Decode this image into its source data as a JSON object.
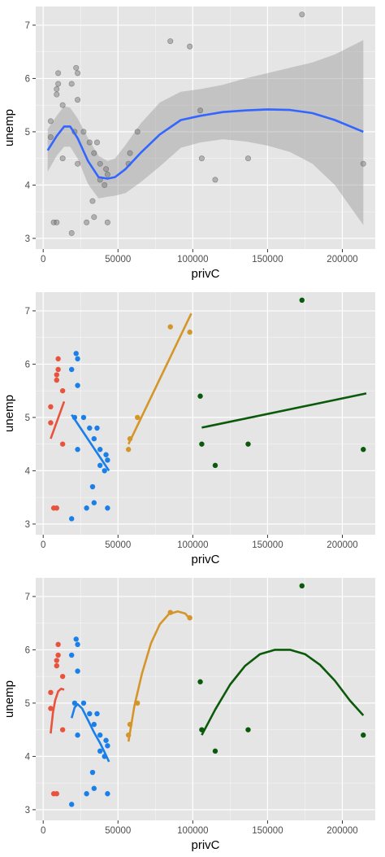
{
  "colors": {
    "panel_bg": "#e5e5e5",
    "grid_major": "#ffffff",
    "tick_text": "#4d4d4d",
    "ribbon": "#999999",
    "loess_line": "#3366ff",
    "group1": "#e8533d",
    "group2": "#1a7fe8",
    "group3": "#d4962a",
    "group4": "#0b5a0b"
  },
  "chart_data": [
    {
      "type": "scatter",
      "title": "",
      "xlabel": "privC",
      "ylabel": "unemp",
      "xlim": [
        -5000,
        222000
      ],
      "ylim": [
        2.8,
        7.35
      ],
      "x_ticks": [
        0,
        50000,
        100000,
        150000,
        200000
      ],
      "x_tick_labels": [
        "0",
        "50000",
        "100000",
        "150000",
        "200000"
      ],
      "y_ticks": [
        3,
        4,
        5,
        6,
        7
      ],
      "y_tick_labels": [
        "3",
        "4",
        "5",
        "6",
        "7"
      ],
      "grid": true,
      "legend": "none",
      "point_style": "grey-translucent",
      "points": [
        [
          5000,
          4.9
        ],
        [
          5000,
          5.2
        ],
        [
          7000,
          3.3
        ],
        [
          9000,
          3.3
        ],
        [
          9000,
          5.7
        ],
        [
          9000,
          5.8
        ],
        [
          10000,
          5.9
        ],
        [
          10000,
          6.1
        ],
        [
          13000,
          5.5
        ],
        [
          13000,
          4.5
        ],
        [
          19000,
          3.1
        ],
        [
          19000,
          5.9
        ],
        [
          21000,
          5.0
        ],
        [
          22000,
          6.2
        ],
        [
          23000,
          4.4
        ],
        [
          23000,
          6.1
        ],
        [
          23000,
          5.6
        ],
        [
          27000,
          5.0
        ],
        [
          29000,
          3.3
        ],
        [
          31000,
          4.8
        ],
        [
          33000,
          3.7
        ],
        [
          34000,
          4.6
        ],
        [
          34000,
          3.4
        ],
        [
          36000,
          4.8
        ],
        [
          38000,
          4.4
        ],
        [
          38000,
          4.1
        ],
        [
          41000,
          4.0
        ],
        [
          42000,
          4.3
        ],
        [
          43000,
          3.3
        ],
        [
          43000,
          4.2
        ],
        [
          57000,
          4.4
        ],
        [
          58000,
          4.6
        ],
        [
          63000,
          5.0
        ],
        [
          85000,
          6.7
        ],
        [
          98000,
          6.6
        ],
        [
          105000,
          5.4
        ],
        [
          106000,
          4.5
        ],
        [
          115000,
          4.1
        ],
        [
          137000,
          4.5
        ],
        [
          173000,
          7.2
        ],
        [
          214000,
          4.4
        ]
      ],
      "smooth": {
        "method": "loess",
        "line": [
          [
            3000,
            4.65
          ],
          [
            9000,
            4.92
          ],
          [
            14000,
            5.1
          ],
          [
            18000,
            5.1
          ],
          [
            23000,
            4.88
          ],
          [
            30000,
            4.45
          ],
          [
            37000,
            4.15
          ],
          [
            43000,
            4.12
          ],
          [
            48000,
            4.15
          ],
          [
            55000,
            4.3
          ],
          [
            65000,
            4.6
          ],
          [
            78000,
            4.95
          ],
          [
            92000,
            5.22
          ],
          [
            105000,
            5.3
          ],
          [
            120000,
            5.37
          ],
          [
            135000,
            5.4
          ],
          [
            150000,
            5.42
          ],
          [
            165000,
            5.41
          ],
          [
            180000,
            5.35
          ],
          [
            195000,
            5.22
          ],
          [
            214000,
            5.0
          ]
        ],
        "ribbon_upper": [
          [
            3000,
            5.05
          ],
          [
            9000,
            5.3
          ],
          [
            14000,
            5.48
          ],
          [
            18000,
            5.45
          ],
          [
            23000,
            5.25
          ],
          [
            30000,
            4.88
          ],
          [
            37000,
            4.55
          ],
          [
            43000,
            4.45
          ],
          [
            48000,
            4.5
          ],
          [
            55000,
            4.75
          ],
          [
            65000,
            5.15
          ],
          [
            78000,
            5.55
          ],
          [
            92000,
            5.75
          ],
          [
            105000,
            5.8
          ],
          [
            120000,
            5.88
          ],
          [
            135000,
            6.0
          ],
          [
            150000,
            6.1
          ],
          [
            165000,
            6.2
          ],
          [
            180000,
            6.3
          ],
          [
            195000,
            6.45
          ],
          [
            214000,
            6.72
          ]
        ],
        "ribbon_lower": [
          [
            3000,
            4.25
          ],
          [
            9000,
            4.55
          ],
          [
            14000,
            4.72
          ],
          [
            18000,
            4.72
          ],
          [
            23000,
            4.5
          ],
          [
            30000,
            4.02
          ],
          [
            37000,
            3.75
          ],
          [
            43000,
            3.78
          ],
          [
            48000,
            3.8
          ],
          [
            55000,
            3.85
          ],
          [
            65000,
            4.05
          ],
          [
            78000,
            4.35
          ],
          [
            92000,
            4.7
          ],
          [
            105000,
            4.8
          ],
          [
            120000,
            4.86
          ],
          [
            135000,
            4.82
          ],
          [
            150000,
            4.74
          ],
          [
            165000,
            4.62
          ],
          [
            180000,
            4.4
          ],
          [
            195000,
            4.0
          ],
          [
            214000,
            3.25
          ]
        ]
      }
    },
    {
      "type": "scatter",
      "title": "",
      "xlabel": "privC",
      "ylabel": "unemp",
      "xlim": [
        -5000,
        222000
      ],
      "ylim": [
        2.8,
        7.35
      ],
      "x_ticks": [
        0,
        50000,
        100000,
        150000,
        200000
      ],
      "x_tick_labels": [
        "0",
        "50000",
        "100000",
        "150000",
        "200000"
      ],
      "y_ticks": [
        3,
        4,
        5,
        6,
        7
      ],
      "y_tick_labels": [
        "3",
        "4",
        "5",
        "6",
        "7"
      ],
      "grid": true,
      "legend": "none",
      "fit": "linear",
      "series": [
        {
          "color": "#e8533d",
          "points": [
            [
              5000,
              4.9
            ],
            [
              5000,
              5.2
            ],
            [
              7000,
              3.3
            ],
            [
              9000,
              3.3
            ],
            [
              9000,
              5.7
            ],
            [
              9000,
              5.8
            ],
            [
              10000,
              5.9
            ],
            [
              10000,
              6.1
            ],
            [
              13000,
              5.5
            ],
            [
              13000,
              4.5
            ]
          ],
          "fit_line": [
            [
              5000,
              4.6
            ],
            [
              14000,
              5.3
            ]
          ]
        },
        {
          "color": "#1a7fe8",
          "points": [
            [
              19000,
              3.1
            ],
            [
              19000,
              5.9
            ],
            [
              21000,
              5.0
            ],
            [
              22000,
              6.2
            ],
            [
              23000,
              4.4
            ],
            [
              23000,
              6.1
            ],
            [
              23000,
              5.6
            ],
            [
              27000,
              5.0
            ],
            [
              29000,
              3.3
            ],
            [
              31000,
              4.8
            ],
            [
              33000,
              3.7
            ],
            [
              34000,
              4.6
            ],
            [
              34000,
              3.4
            ],
            [
              36000,
              4.8
            ],
            [
              38000,
              4.4
            ],
            [
              38000,
              4.1
            ],
            [
              41000,
              4.0
            ],
            [
              42000,
              4.3
            ],
            [
              43000,
              3.3
            ],
            [
              43000,
              4.2
            ]
          ],
          "fit_line": [
            [
              19000,
              5.05
            ],
            [
              44000,
              4.0
            ]
          ]
        },
        {
          "color": "#d4962a",
          "points": [
            [
              57000,
              4.4
            ],
            [
              58000,
              4.6
            ],
            [
              63000,
              5.0
            ],
            [
              85000,
              6.7
            ],
            [
              98000,
              6.6
            ]
          ],
          "fit_line": [
            [
              57000,
              4.5
            ],
            [
              99000,
              6.95
            ]
          ]
        },
        {
          "color": "#0b5a0b",
          "points": [
            [
              105000,
              5.4
            ],
            [
              106000,
              4.5
            ],
            [
              115000,
              4.1
            ],
            [
              137000,
              4.5
            ],
            [
              173000,
              7.2
            ],
            [
              214000,
              4.4
            ]
          ],
          "fit_line": [
            [
              106000,
              4.81
            ],
            [
              216000,
              5.45
            ]
          ]
        }
      ]
    },
    {
      "type": "scatter",
      "title": "",
      "xlabel": "privC",
      "ylabel": "unemp",
      "xlim": [
        -5000,
        222000
      ],
      "ylim": [
        2.8,
        7.35
      ],
      "x_ticks": [
        0,
        50000,
        100000,
        150000,
        200000
      ],
      "x_tick_labels": [
        "0",
        "50000",
        "100000",
        "150000",
        "200000"
      ],
      "y_ticks": [
        3,
        4,
        5,
        6,
        7
      ],
      "y_tick_labels": [
        "3",
        "4",
        "5",
        "6",
        "7"
      ],
      "grid": true,
      "legend": "none",
      "fit": "quadratic",
      "series": [
        {
          "color": "#e8533d",
          "points": [
            [
              5000,
              4.9
            ],
            [
              5000,
              5.2
            ],
            [
              7000,
              3.3
            ],
            [
              9000,
              3.3
            ],
            [
              9000,
              5.7
            ],
            [
              9000,
              5.8
            ],
            [
              10000,
              5.9
            ],
            [
              10000,
              6.1
            ],
            [
              13000,
              5.5
            ],
            [
              13000,
              4.5
            ]
          ],
          "fit_line": [
            [
              5000,
              4.43
            ],
            [
              6500,
              4.82
            ],
            [
              8000,
              5.05
            ],
            [
              10000,
              5.22
            ],
            [
              12000,
              5.27
            ],
            [
              14000,
              5.25
            ]
          ]
        },
        {
          "color": "#1a7fe8",
          "points": [
            [
              19000,
              3.1
            ],
            [
              19000,
              5.9
            ],
            [
              21000,
              5.0
            ],
            [
              22000,
              6.2
            ],
            [
              23000,
              4.4
            ],
            [
              23000,
              6.1
            ],
            [
              23000,
              5.6
            ],
            [
              27000,
              5.0
            ],
            [
              29000,
              3.3
            ],
            [
              31000,
              4.8
            ],
            [
              33000,
              3.7
            ],
            [
              34000,
              4.6
            ],
            [
              34000,
              3.4
            ],
            [
              36000,
              4.8
            ],
            [
              38000,
              4.4
            ],
            [
              38000,
              4.1
            ],
            [
              41000,
              4.0
            ],
            [
              42000,
              4.3
            ],
            [
              43000,
              3.3
            ],
            [
              43000,
              4.2
            ]
          ],
          "fit_line": [
            [
              19000,
              4.72
            ],
            [
              21000,
              4.92
            ],
            [
              23000,
              4.98
            ],
            [
              26000,
              4.9
            ],
            [
              30000,
              4.68
            ],
            [
              34000,
              4.45
            ],
            [
              38000,
              4.25
            ],
            [
              41000,
              4.08
            ],
            [
              44000,
              3.9
            ]
          ]
        },
        {
          "color": "#d4962a",
          "points": [
            [
              57000,
              4.4
            ],
            [
              58000,
              4.6
            ],
            [
              63000,
              5.0
            ],
            [
              85000,
              6.7
            ],
            [
              98000,
              6.6
            ]
          ],
          "fit_line": [
            [
              57000,
              4.28
            ],
            [
              61000,
              4.95
            ],
            [
              66000,
              5.55
            ],
            [
              72000,
              6.12
            ],
            [
              78000,
              6.48
            ],
            [
              84000,
              6.67
            ],
            [
              90000,
              6.72
            ],
            [
              95000,
              6.68
            ],
            [
              98000,
              6.58
            ]
          ]
        },
        {
          "color": "#0b5a0b",
          "points": [
            [
              105000,
              5.4
            ],
            [
              106000,
              4.5
            ],
            [
              115000,
              4.1
            ],
            [
              137000,
              4.5
            ],
            [
              173000,
              7.2
            ],
            [
              214000,
              4.4
            ]
          ],
          "fit_line": [
            [
              106000,
              4.4
            ],
            [
              115000,
              4.88
            ],
            [
              125000,
              5.35
            ],
            [
              135000,
              5.7
            ],
            [
              145000,
              5.92
            ],
            [
              155000,
              6.0
            ],
            [
              165000,
              6.0
            ],
            [
              175000,
              5.92
            ],
            [
              185000,
              5.72
            ],
            [
              195000,
              5.42
            ],
            [
              205000,
              5.05
            ],
            [
              214000,
              4.77
            ]
          ]
        }
      ]
    }
  ]
}
